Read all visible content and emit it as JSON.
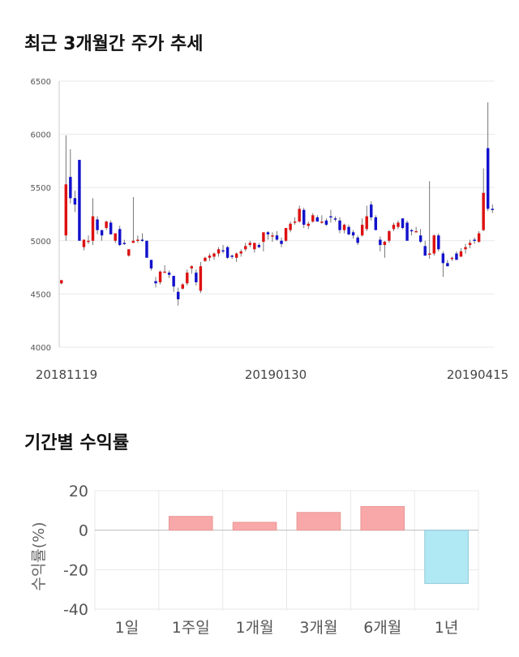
{
  "price_chart": {
    "title": "최근 3개월간 주가 추세"
  },
  "return_chart": {
    "title": "기간별 수익률"
  },
  "colors": {
    "up": "#dd1111",
    "down": "#1111cc",
    "positive_bar": "#f8a8a8",
    "negative_bar": "#b0e8f4",
    "grid": "#e8e8e8"
  },
  "chart_data": [
    {
      "type": "candlestick",
      "title": "최근 3개월간 주가 추세",
      "ylim": [
        4000,
        6500
      ],
      "y_ticks": [
        4000,
        4500,
        5000,
        5500,
        6000,
        6500
      ],
      "x_tick_labels": [
        "20181119",
        "20190130",
        "20190415"
      ],
      "grid": true,
      "candles": [
        [
          4600,
          4630,
          4590,
          4630
        ],
        [
          5050,
          5990,
          5000,
          5530
        ],
        [
          5600,
          5860,
          5350,
          5400
        ],
        [
          5400,
          5470,
          5270,
          5340
        ],
        [
          5760,
          5760,
          5000,
          5000
        ],
        [
          4940,
          5010,
          4910,
          5010
        ],
        [
          5000,
          5050,
          4970,
          5000
        ],
        [
          5000,
          5400,
          4960,
          5230
        ],
        [
          5200,
          5230,
          5060,
          5100
        ],
        [
          5100,
          5100,
          5000,
          5050
        ],
        [
          5120,
          5190,
          5100,
          5180
        ],
        [
          5170,
          5190,
          5060,
          5060
        ],
        [
          5000,
          5070,
          4980,
          5070
        ],
        [
          5110,
          5140,
          4950,
          4960
        ],
        [
          4980,
          5010,
          4960,
          4970
        ],
        [
          4860,
          4920,
          4850,
          4920
        ],
        [
          4980,
          5410,
          4980,
          5000
        ],
        [
          5000,
          5050,
          4980,
          5010
        ],
        [
          5010,
          5070,
          4990,
          5000
        ],
        [
          5000,
          5000,
          4850,
          4840
        ],
        [
          4820,
          4820,
          4720,
          4740
        ],
        [
          4620,
          4660,
          4560,
          4600
        ],
        [
          4610,
          4720,
          4590,
          4710
        ],
        [
          4710,
          4770,
          4700,
          4710
        ],
        [
          4700,
          4720,
          4650,
          4680
        ],
        [
          4670,
          4670,
          4520,
          4570
        ],
        [
          4520,
          4560,
          4390,
          4450
        ],
        [
          4550,
          4600,
          4540,
          4590
        ],
        [
          4600,
          4730,
          4580,
          4700
        ],
        [
          4740,
          4770,
          4690,
          4760
        ],
        [
          4700,
          4730,
          4580,
          4610
        ],
        [
          4530,
          4800,
          4510,
          4760
        ],
        [
          4810,
          4850,
          4800,
          4840
        ],
        [
          4840,
          4880,
          4810,
          4860
        ],
        [
          4850,
          4890,
          4820,
          4880
        ],
        [
          4880,
          4940,
          4850,
          4920
        ],
        [
          4910,
          4960,
          4880,
          4900
        ],
        [
          4940,
          4950,
          4830,
          4840
        ],
        [
          4860,
          4870,
          4830,
          4850
        ],
        [
          4840,
          4890,
          4800,
          4880
        ],
        [
          4880,
          4920,
          4850,
          4900
        ],
        [
          4920,
          4980,
          4900,
          4950
        ],
        [
          4960,
          5000,
          4940,
          4980
        ],
        [
          4920,
          4980,
          4890,
          4980
        ],
        [
          4960,
          4980,
          4930,
          4940
        ],
        [
          4990,
          5060,
          4900,
          5080
        ],
        [
          5080,
          5090,
          5010,
          5060
        ],
        [
          5040,
          5080,
          4990,
          5050
        ],
        [
          5050,
          5090,
          5000,
          5010
        ],
        [
          5000,
          5030,
          4940,
          4970
        ],
        [
          5000,
          5120,
          4990,
          5120
        ],
        [
          5100,
          5180,
          5080,
          5160
        ],
        [
          5180,
          5220,
          5150,
          5180
        ],
        [
          5180,
          5330,
          5170,
          5300
        ],
        [
          5290,
          5310,
          5120,
          5150
        ],
        [
          5140,
          5180,
          5110,
          5160
        ],
        [
          5180,
          5260,
          5170,
          5240
        ],
        [
          5220,
          5240,
          5180,
          5180
        ],
        [
          5180,
          5240,
          5160,
          5180
        ],
        [
          5190,
          5210,
          5140,
          5150
        ],
        [
          5230,
          5290,
          5170,
          5220
        ],
        [
          5210,
          5230,
          5180,
          5200
        ],
        [
          5190,
          5220,
          5070,
          5100
        ],
        [
          5100,
          5160,
          5070,
          5150
        ],
        [
          5130,
          5150,
          5050,
          5060
        ],
        [
          5080,
          5100,
          5020,
          5050
        ],
        [
          5030,
          5050,
          4960,
          4980
        ],
        [
          5050,
          5210,
          5040,
          5150
        ],
        [
          5110,
          5330,
          5090,
          5230
        ],
        [
          5340,
          5370,
          5190,
          5220
        ],
        [
          5220,
          5240,
          5100,
          5100
        ],
        [
          5010,
          5040,
          4900,
          4960
        ],
        [
          4960,
          5000,
          4840,
          4990
        ],
        [
          5000,
          5100,
          4980,
          5090
        ],
        [
          5110,
          5170,
          5090,
          5150
        ],
        [
          5130,
          5190,
          5110,
          5170
        ],
        [
          5210,
          5210,
          5110,
          5120
        ],
        [
          5170,
          5190,
          5000,
          5000
        ],
        [
          5100,
          5110,
          5050,
          5090
        ],
        [
          5090,
          5130,
          5080,
          5090
        ],
        [
          5050,
          5110,
          4980,
          4990
        ],
        [
          4950,
          5000,
          4860,
          4860
        ],
        [
          4870,
          5560,
          4830,
          4880
        ],
        [
          4880,
          5060,
          4860,
          5050
        ],
        [
          5050,
          5070,
          4900,
          4920
        ],
        [
          4880,
          4900,
          4660,
          4790
        ],
        [
          4790,
          4820,
          4770,
          4760
        ],
        [
          4830,
          4850,
          4810,
          4840
        ],
        [
          4880,
          4900,
          4830,
          4820
        ],
        [
          4850,
          4930,
          4850,
          4900
        ],
        [
          4920,
          4970,
          4880,
          4940
        ],
        [
          4960,
          5010,
          4930,
          4980
        ],
        [
          5010,
          5030,
          4970,
          5000
        ],
        [
          4990,
          5090,
          4980,
          5070
        ],
        [
          5100,
          5680,
          5090,
          5450
        ],
        [
          5870,
          6300,
          5280,
          5300
        ],
        [
          5300,
          5340,
          5260,
          5290
        ]
      ]
    },
    {
      "type": "bar",
      "categories": [
        "1일",
        "1주일",
        "1개월",
        "3개월",
        "6개월",
        "1년"
      ],
      "values": [
        0,
        7,
        4,
        9,
        12,
        -27
      ],
      "ylabel": "수익률(%)",
      "ylim": [
        -40,
        20
      ],
      "y_ticks": [
        20,
        0,
        -20,
        -40
      ],
      "grid": true
    }
  ]
}
